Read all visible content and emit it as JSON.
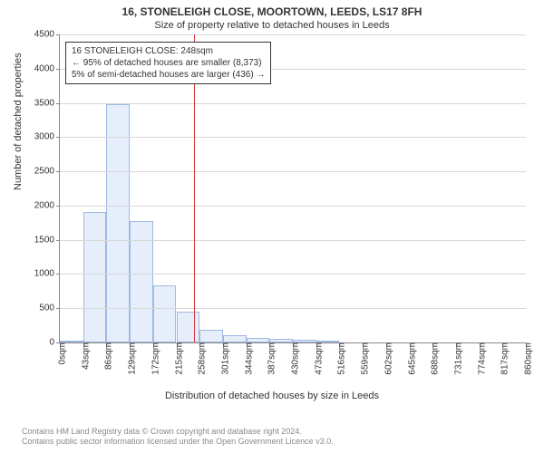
{
  "title_main": "16, STONELEIGH CLOSE, MOORTOWN, LEEDS, LS17 8FH",
  "title_sub": "Size of property relative to detached houses in Leeds",
  "y_axis_label": "Number of detached properties",
  "x_axis_label": "Distribution of detached houses by size in Leeds",
  "footer_line1": "Contains HM Land Registry data © Crown copyright and database right 2024.",
  "footer_line2": "Contains public sector information licensed under the Open Government Licence v3.0.",
  "chart": {
    "type": "histogram",
    "ylim": [
      0,
      4500
    ],
    "ytick_step": 500,
    "xlim": [
      0,
      860
    ],
    "xtick_step": 43,
    "x_unit": "sqm",
    "bar_fill": "#e6eefb",
    "bar_border": "#9fb9e0",
    "grid_color": "#d8d8d8",
    "axis_color": "#888888",
    "background": "#ffffff",
    "ref_line_x": 248,
    "ref_line_color": "#d63a3a",
    "bars": [
      {
        "x0": 0,
        "x1": 43,
        "count": 20
      },
      {
        "x0": 43,
        "x1": 86,
        "count": 1900
      },
      {
        "x0": 86,
        "x1": 129,
        "count": 3480
      },
      {
        "x0": 129,
        "x1": 172,
        "count": 1770
      },
      {
        "x0": 172,
        "x1": 215,
        "count": 830
      },
      {
        "x0": 215,
        "x1": 258,
        "count": 450
      },
      {
        "x0": 258,
        "x1": 301,
        "count": 180
      },
      {
        "x0": 301,
        "x1": 344,
        "count": 100
      },
      {
        "x0": 344,
        "x1": 387,
        "count": 65
      },
      {
        "x0": 387,
        "x1": 430,
        "count": 50
      },
      {
        "x0": 430,
        "x1": 473,
        "count": 35
      },
      {
        "x0": 473,
        "x1": 516,
        "count": 30
      },
      {
        "x0": 516,
        "x1": 559,
        "count": 0
      },
      {
        "x0": 559,
        "x1": 602,
        "count": 0
      },
      {
        "x0": 602,
        "x1": 645,
        "count": 0
      },
      {
        "x0": 645,
        "x1": 688,
        "count": 0
      },
      {
        "x0": 688,
        "x1": 731,
        "count": 0
      },
      {
        "x0": 731,
        "x1": 774,
        "count": 0
      },
      {
        "x0": 774,
        "x1": 817,
        "count": 0
      },
      {
        "x0": 817,
        "x1": 860,
        "count": 0
      }
    ],
    "annotation": {
      "line1": "16 STONELEIGH CLOSE: 248sqm",
      "line2": "← 95% of detached houses are smaller (8,373)",
      "line3": "5% of semi-detached houses are larger (436) →",
      "border": "#333333",
      "background": "#ffffff",
      "fontsize": 10
    }
  }
}
